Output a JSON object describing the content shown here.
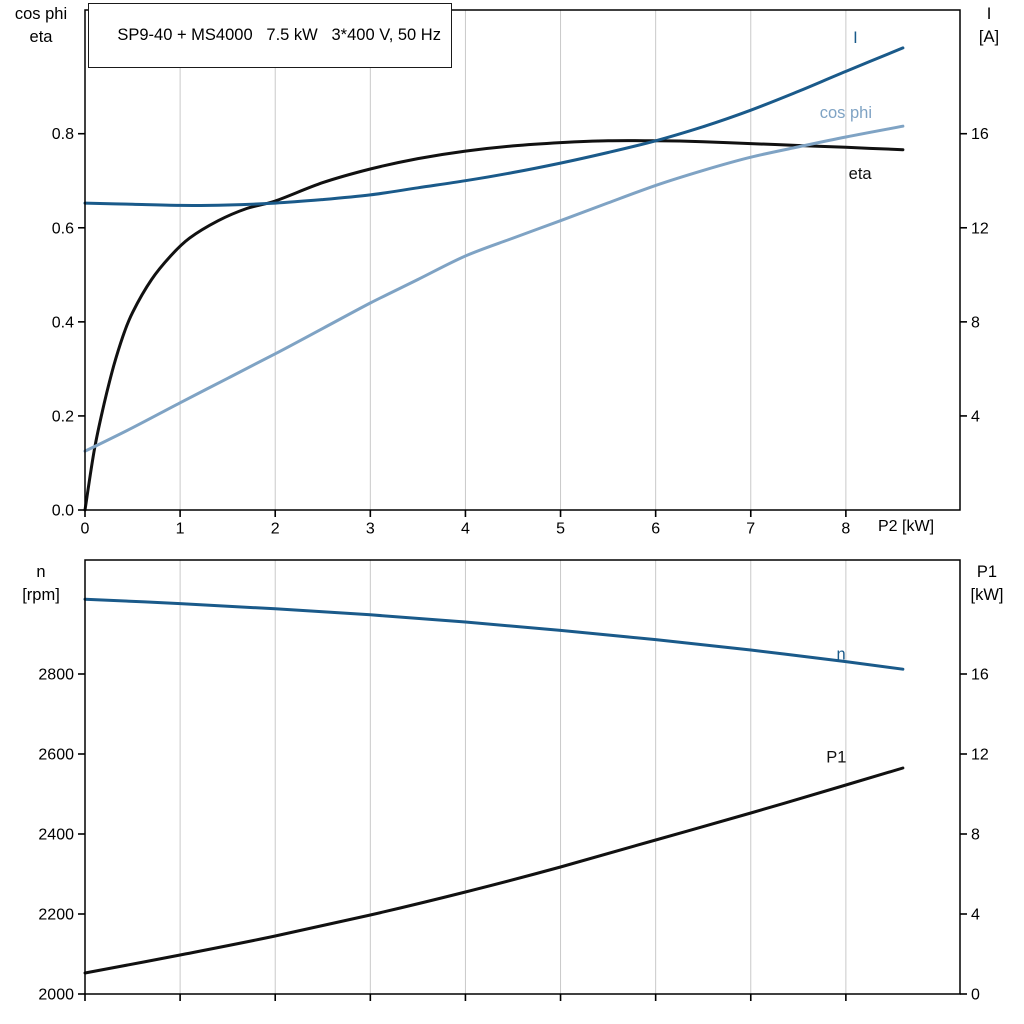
{
  "colors": {
    "dark_blue": "#1a5a8a",
    "light_blue": "#7fa3c4",
    "black": "#111111",
    "grid": "#c9c9c9",
    "axis": "#000000",
    "background": "#ffffff"
  },
  "chart_data": [
    {
      "type": "line",
      "title": "SP9-40 + MS4000   7.5 kW   3*400 V, 50 Hz",
      "grid": "vertical-only",
      "legend": "inline-curve-labels",
      "x_axis": {
        "label": "P2 [kW]",
        "min": 0,
        "max": 9.2,
        "ticks": [
          0,
          1,
          2,
          3,
          4,
          5,
          6,
          7,
          8
        ],
        "show_tick_labels": true
      },
      "left_axis": {
        "title_lines": [
          "cos phi",
          "eta"
        ],
        "min": 0,
        "max": 1.063,
        "ticks": [
          0.0,
          0.2,
          0.4,
          0.6,
          0.8
        ],
        "decimals": 1
      },
      "right_axis": {
        "title_lines": [
          "I",
          "[A]"
        ],
        "min": 0,
        "max": 21.26,
        "ticks": [
          4,
          8,
          12,
          16
        ],
        "decimals": 0
      },
      "series": [
        {
          "name": "eta",
          "label": "eta",
          "axis": "left",
          "color_key": "black",
          "label_pos": [
            8.15,
            0.715
          ],
          "points": [
            [
              0,
              0
            ],
            [
              0.1,
              0.13
            ],
            [
              0.2,
              0.225
            ],
            [
              0.3,
              0.305
            ],
            [
              0.4,
              0.37
            ],
            [
              0.5,
              0.42
            ],
            [
              0.7,
              0.49
            ],
            [
              0.9,
              0.54
            ],
            [
              1.1,
              0.578
            ],
            [
              1.4,
              0.615
            ],
            [
              1.7,
              0.641
            ],
            [
              2,
              0.657
            ],
            [
              2.5,
              0.696
            ],
            [
              3,
              0.725
            ],
            [
              3.5,
              0.747
            ],
            [
              4,
              0.763
            ],
            [
              4.5,
              0.774
            ],
            [
              5,
              0.781
            ],
            [
              5.5,
              0.785
            ],
            [
              6,
              0.785
            ],
            [
              6.5,
              0.783
            ],
            [
              7,
              0.779
            ],
            [
              7.5,
              0.775
            ],
            [
              8,
              0.771
            ],
            [
              8.6,
              0.766
            ]
          ]
        },
        {
          "name": "cos phi",
          "label": "cos phi",
          "axis": "left",
          "color_key": "light_blue",
          "label_pos": [
            8.0,
            0.845
          ],
          "points": [
            [
              0,
              0.125
            ],
            [
              0.5,
              0.175
            ],
            [
              1,
              0.228
            ],
            [
              1.5,
              0.28
            ],
            [
              2,
              0.332
            ],
            [
              2.5,
              0.386
            ],
            [
              3,
              0.44
            ],
            [
              3.5,
              0.49
            ],
            [
              4,
              0.54
            ],
            [
              4.5,
              0.578
            ],
            [
              5,
              0.615
            ],
            [
              5.5,
              0.653
            ],
            [
              6,
              0.69
            ],
            [
              6.5,
              0.722
            ],
            [
              7,
              0.75
            ],
            [
              7.5,
              0.772
            ],
            [
              8,
              0.793
            ],
            [
              8.6,
              0.816
            ]
          ]
        },
        {
          "name": "I",
          "label": "I",
          "axis": "right",
          "color_key": "dark_blue",
          "label_pos": [
            8.1,
            20.1
          ],
          "points": [
            [
              0,
              13.05
            ],
            [
              0.5,
              13.0
            ],
            [
              1,
              12.95
            ],
            [
              1.5,
              12.97
            ],
            [
              2,
              13.05
            ],
            [
              2.5,
              13.2
            ],
            [
              3,
              13.4
            ],
            [
              3.5,
              13.7
            ],
            [
              4,
              14.0
            ],
            [
              4.5,
              14.35
            ],
            [
              5,
              14.75
            ],
            [
              5.5,
              15.2
            ],
            [
              6,
              15.7
            ],
            [
              6.5,
              16.3
            ],
            [
              7,
              17.0
            ],
            [
              7.5,
              17.8
            ],
            [
              8,
              18.65
            ],
            [
              8.6,
              19.65
            ]
          ]
        }
      ]
    },
    {
      "type": "line",
      "title": "",
      "grid": "vertical-only",
      "legend": "inline-curve-labels",
      "x_axis": {
        "label": "",
        "min": 0,
        "max": 9.2,
        "ticks": [
          0,
          1,
          2,
          3,
          4,
          5,
          6,
          7,
          8
        ],
        "show_tick_labels": false
      },
      "left_axis": {
        "title_lines": [
          "n",
          "[rpm]"
        ],
        "min": 2000,
        "max": 3085,
        "ticks": [
          2000,
          2200,
          2400,
          2600,
          2800
        ],
        "decimals": 0
      },
      "right_axis": {
        "title_lines": [
          "P1",
          "[kW]"
        ],
        "min": 0,
        "max": 21.7,
        "ticks": [
          0,
          4,
          8,
          12,
          16
        ],
        "decimals": 0
      },
      "series": [
        {
          "name": "n",
          "label": "n",
          "axis": "left",
          "color_key": "dark_blue",
          "label_pos": [
            7.95,
            2850
          ],
          "points": [
            [
              0,
              2987
            ],
            [
              1,
              2976
            ],
            [
              2,
              2963
            ],
            [
              3,
              2948
            ],
            [
              4,
              2930
            ],
            [
              5,
              2909
            ],
            [
              6,
              2886
            ],
            [
              7,
              2860
            ],
            [
              8,
              2831
            ],
            [
              8.6,
              2812
            ]
          ]
        },
        {
          "name": "P1",
          "label": "P1",
          "axis": "right",
          "color_key": "black",
          "label_pos": [
            7.9,
            11.85
          ],
          "points": [
            [
              0,
              1.05
            ],
            [
              1,
              1.95
            ],
            [
              2,
              2.9
            ],
            [
              3,
              3.95
            ],
            [
              4,
              5.1
            ],
            [
              5,
              6.35
            ],
            [
              6,
              7.7
            ],
            [
              7,
              9.05
            ],
            [
              8,
              10.45
            ],
            [
              8.6,
              11.3
            ]
          ]
        }
      ]
    }
  ]
}
